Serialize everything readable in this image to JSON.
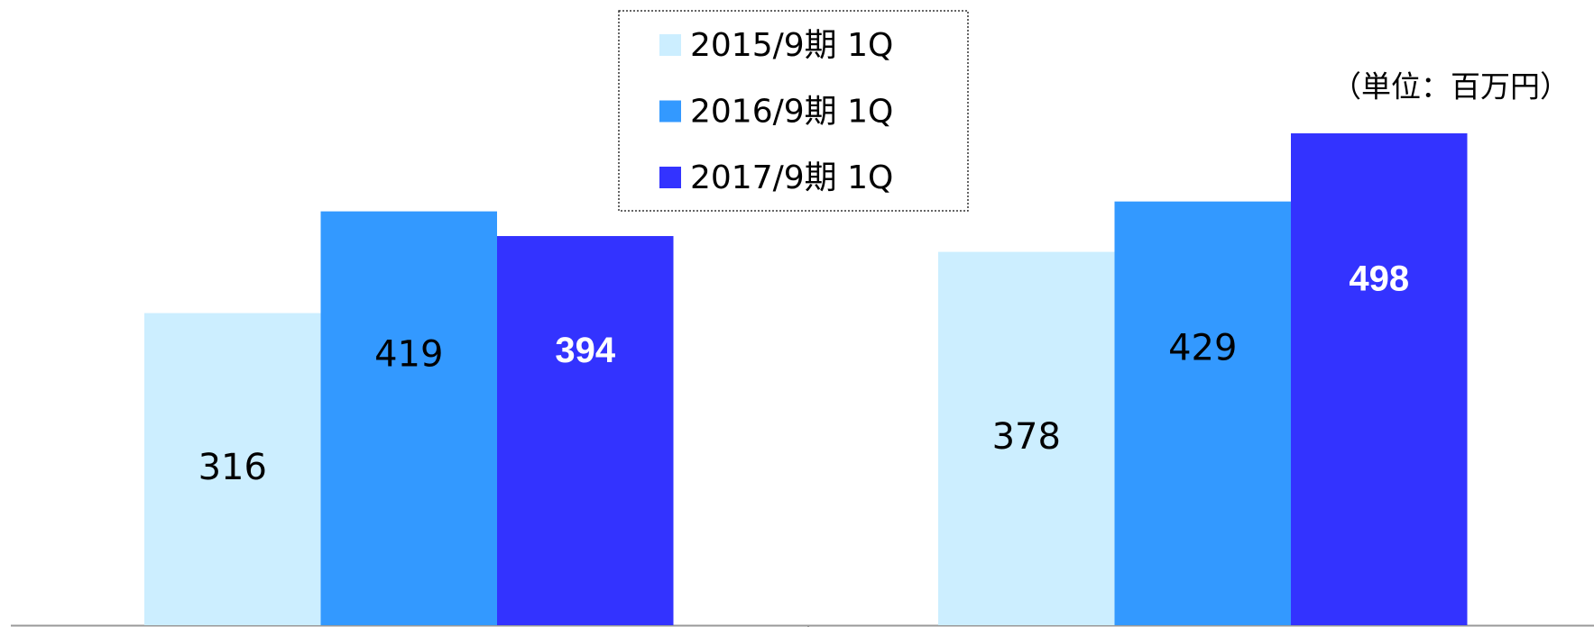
{
  "chart_data": {
    "type": "bar",
    "unit_label": "（単位：百万円）",
    "categories": [
      null,
      null
    ],
    "series": [
      {
        "name": "2015/9期 1Q",
        "color": "#cceeff",
        "values": [
          316,
          378
        ]
      },
      {
        "name": "2016/9期 1Q",
        "color": "#3399ff",
        "values": [
          419,
          429
        ]
      },
      {
        "name": "2017/9期 1Q",
        "color": "#3333ff",
        "values": [
          394,
          498
        ]
      }
    ],
    "ylim": [
      0,
      633
    ]
  }
}
